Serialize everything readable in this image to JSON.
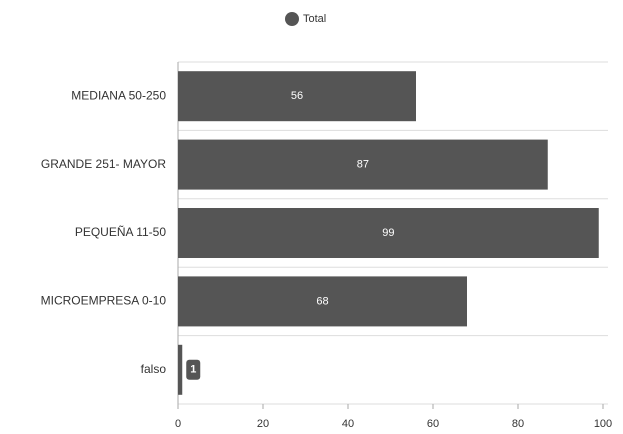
{
  "chart_data": {
    "type": "hbar",
    "legend": {
      "label": "Total",
      "position": "top"
    },
    "categories": [
      "MEDIANA 50-250",
      "GRANDE 251- MAYOR",
      "PEQUEÑA 11-50",
      "MICROEMPRESA 0-10",
      "falso"
    ],
    "series": [
      {
        "name": "Total",
        "color": "#555555",
        "values": [
          56,
          87,
          99,
          68,
          1
        ]
      }
    ],
    "xlim": [
      0,
      100
    ],
    "xticks": [
      0,
      20,
      40,
      60,
      80,
      100
    ]
  }
}
